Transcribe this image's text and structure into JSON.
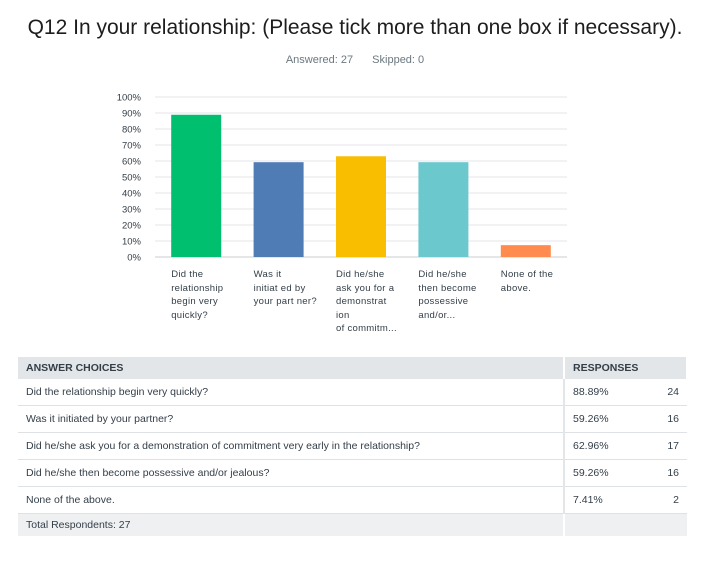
{
  "header": {
    "question": "Q12 In your relationship: (Please tick more than one box if necessary).",
    "answered": "Answered: 27",
    "skipped": "Skipped: 0"
  },
  "chart_data": {
    "type": "bar",
    "categories": [
      [
        "Did the",
        "relationship",
        "begin very",
        "quickly?"
      ],
      [
        "Was it",
        "initiat ed by",
        "your part ner?"
      ],
      [
        "Did he/she",
        "ask you for a",
        "demonstrat ion",
        "of commitm..."
      ],
      [
        "Did he/she",
        "then become",
        "possessive",
        "and/or..."
      ],
      [
        "None of the",
        "above."
      ]
    ],
    "values": [
      88.89,
      59.26,
      62.96,
      59.26,
      7.41
    ],
    "colors": [
      "#00bf6f",
      "#507cb6",
      "#f9be00",
      "#6bc8cd",
      "#ff8b4f"
    ],
    "yticks": [
      "0%",
      "10%",
      "20%",
      "30%",
      "40%",
      "50%",
      "60%",
      "70%",
      "80%",
      "90%",
      "100%"
    ],
    "ylim": [
      0,
      100
    ],
    "grid": true,
    "legend": "none"
  },
  "table": {
    "headers": {
      "choice": "ANSWER CHOICES",
      "responses": "RESPONSES"
    },
    "rows": [
      {
        "choice": "Did the relationship begin very quickly?",
        "pct": "88.89%",
        "count": "24"
      },
      {
        "choice": "Was it initiated by your partner?",
        "pct": "59.26%",
        "count": "16"
      },
      {
        "choice": "Did he/she ask you for a demonstration of commitment very early in the relationship?",
        "pct": "62.96%",
        "count": "17"
      },
      {
        "choice": "Did he/she then become possessive and/or jealous?",
        "pct": "59.26%",
        "count": "16"
      },
      {
        "choice": "None of the above.",
        "pct": "7.41%",
        "count": "2"
      }
    ],
    "total": "Total Respondents: 27"
  }
}
